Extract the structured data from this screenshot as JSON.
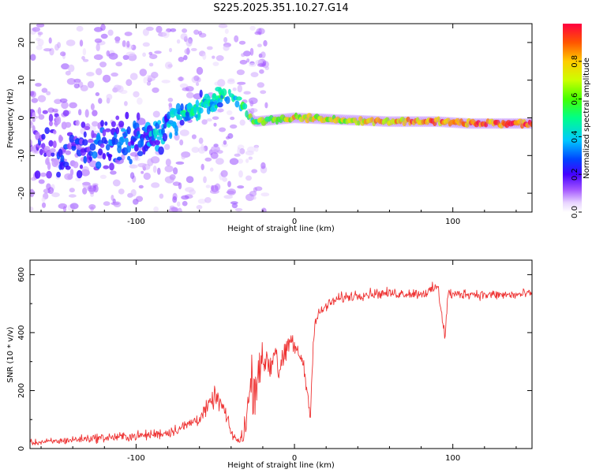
{
  "title": "S225.2025.351.10.27.G14",
  "chart_data": [
    {
      "id": "spectrogram",
      "type": "heatmap",
      "title": "S225.2025.351.10.27.G14",
      "xlabel": "Height of straight line (km)",
      "ylabel": "Frequency (Hz)",
      "xlim": [
        -167,
        150
      ],
      "ylim": [
        -25,
        25
      ],
      "xticks": [
        -100,
        0,
        100
      ],
      "yticks": [
        -20,
        -10,
        0,
        10,
        20
      ],
      "colorbar": {
        "label": "Normalized spectral amplitude",
        "range": [
          0,
          1
        ],
        "ticks": [
          "0.0",
          "0.2",
          "0.4",
          "0.6",
          "0.8"
        ],
        "tick_values": [
          0.0,
          0.2,
          0.4,
          0.6,
          0.8
        ]
      },
      "ridge": [
        {
          "x": -160,
          "freq": -7,
          "amp": 0.15,
          "spread": 16
        },
        {
          "x": -140,
          "freq": -9,
          "amp": 0.2,
          "spread": 14
        },
        {
          "x": -120,
          "freq": -7,
          "amp": 0.25,
          "spread": 12
        },
        {
          "x": -100,
          "freq": -5,
          "amp": 0.3,
          "spread": 9
        },
        {
          "x": -85,
          "freq": -4,
          "amp": 0.35,
          "spread": 6
        },
        {
          "x": -70,
          "freq": 1,
          "amp": 0.4,
          "spread": 4
        },
        {
          "x": -55,
          "freq": 4,
          "amp": 0.45,
          "spread": 4
        },
        {
          "x": -45,
          "freq": 6,
          "amp": 0.45,
          "spread": 3
        },
        {
          "x": -35,
          "freq": 4,
          "amp": 0.45,
          "spread": 2
        },
        {
          "x": -25,
          "freq": -1,
          "amp": 0.6,
          "spread": 1
        },
        {
          "x": 0,
          "freq": 0,
          "amp": 0.75,
          "spread": 1
        },
        {
          "x": 30,
          "freq": -0.5,
          "amp": 0.7,
          "spread": 1
        },
        {
          "x": 60,
          "freq": -1,
          "amp": 0.8,
          "spread": 1
        },
        {
          "x": 90,
          "freq": -1,
          "amp": 0.85,
          "spread": 1
        },
        {
          "x": 110,
          "freq": -1.5,
          "amp": 0.9,
          "spread": 1
        },
        {
          "x": 150,
          "freq": -1.5,
          "amp": 0.95,
          "spread": 1
        }
      ]
    },
    {
      "id": "snr",
      "type": "line",
      "xlabel": "Height of straight line (km)",
      "ylabel": "SNR (10 * v/v)",
      "xlim": [
        -167,
        150
      ],
      "ylim": [
        0,
        650
      ],
      "xticks": [
        -100,
        0,
        100
      ],
      "yticks": [
        0,
        200,
        400,
        600
      ],
      "color": "#ee3333",
      "series": [
        {
          "name": "SNR",
          "x": [
            -167,
            -150,
            -130,
            -110,
            -95,
            -80,
            -70,
            -60,
            -55,
            -50,
            -45,
            -40,
            -35,
            -32,
            -30,
            -27,
            -25,
            -22,
            -20,
            -18,
            -15,
            -12,
            -10,
            -7,
            -5,
            -2,
            0,
            3,
            5,
            8,
            10,
            12,
            13,
            15,
            18,
            20,
            25,
            30,
            40,
            50,
            60,
            70,
            80,
            85,
            90,
            93,
            95,
            97,
            100,
            110,
            120,
            130,
            140,
            150
          ],
          "values": [
            20,
            25,
            35,
            40,
            45,
            55,
            75,
            105,
            140,
            180,
            140,
            55,
            20,
            60,
            120,
            240,
            200,
            310,
            270,
            320,
            280,
            360,
            260,
            310,
            330,
            380,
            350,
            320,
            310,
            200,
            110,
            380,
            430,
            460,
            480,
            490,
            510,
            520,
            530,
            535,
            535,
            535,
            535,
            540,
            560,
            480,
            380,
            540,
            530,
            535,
            530,
            530,
            530,
            535
          ],
          "noise": [
            15,
            18,
            22,
            25,
            25,
            28,
            30,
            35,
            40,
            50,
            45,
            30,
            20,
            60,
            100,
            150,
            120,
            130,
            110,
            100,
            90,
            80,
            70,
            60,
            55,
            50,
            45,
            40,
            40,
            30,
            20,
            40,
            35,
            32,
            30,
            28,
            28,
            28,
            28,
            26,
            26,
            26,
            26,
            28,
            35,
            60,
            30,
            30,
            26,
            26,
            26,
            26,
            26,
            26
          ]
        }
      ]
    }
  ]
}
